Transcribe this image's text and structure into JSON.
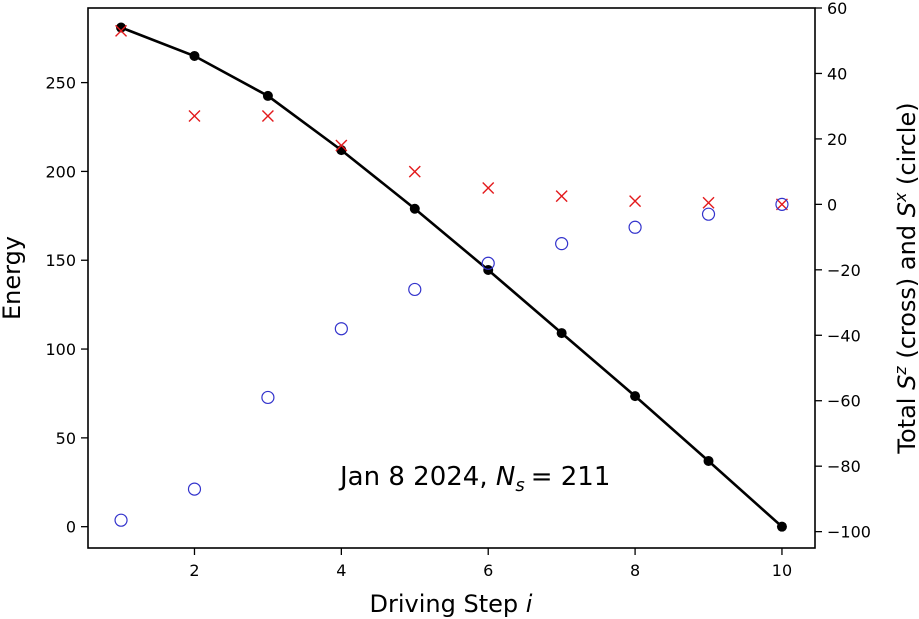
{
  "chart_data": {
    "type": "line",
    "x": [
      1,
      2,
      3,
      4,
      5,
      6,
      7,
      8,
      9,
      10
    ],
    "xlabel": "Driving Step",
    "xlabel_var": "i",
    "xlim": [
      0.55,
      10.45
    ],
    "xticks": [
      2,
      4,
      6,
      8,
      10
    ],
    "y_left": {
      "label": "Energy",
      "lim": [
        -12,
        292
      ],
      "ticks": [
        0,
        50,
        100,
        150,
        200,
        250
      ]
    },
    "y_right": {
      "label_prefix": "Total ",
      "label_sz": "S",
      "label_sz_sup": "z",
      "label_mid": " (cross) and ",
      "label_sx": "S",
      "label_sx_sup": "x",
      "label_suffix": " (circle)",
      "lim": [
        -105,
        60
      ],
      "ticks": [
        -100,
        -80,
        -60,
        -40,
        -20,
        0,
        20,
        40,
        60
      ],
      "tick_labels": [
        "−100",
        "−80",
        "−60",
        "−40",
        "−20",
        "0",
        "20",
        "40",
        "60"
      ]
    },
    "series": [
      {
        "axis": "left",
        "style": "line-dot",
        "color": "#000000",
        "values": [
          281,
          265,
          242.5,
          212,
          179,
          144.5,
          109,
          73.5,
          37,
          0
        ]
      },
      {
        "axis": "right",
        "style": "cross",
        "color": "#e31a1c",
        "values": [
          53,
          27,
          27,
          18,
          10,
          5,
          2.5,
          1,
          0.5,
          0
        ]
      },
      {
        "axis": "right",
        "style": "circle",
        "color": "#3333cc",
        "values": [
          -96.5,
          -87,
          -59,
          -38,
          -26,
          -18,
          -12,
          -7,
          -3,
          0
        ]
      }
    ],
    "annotation": {
      "date": "Jan 8 2024,",
      "var": "N",
      "sub": "s",
      "eq": "= 211"
    },
    "grid": false,
    "legend": "none"
  }
}
